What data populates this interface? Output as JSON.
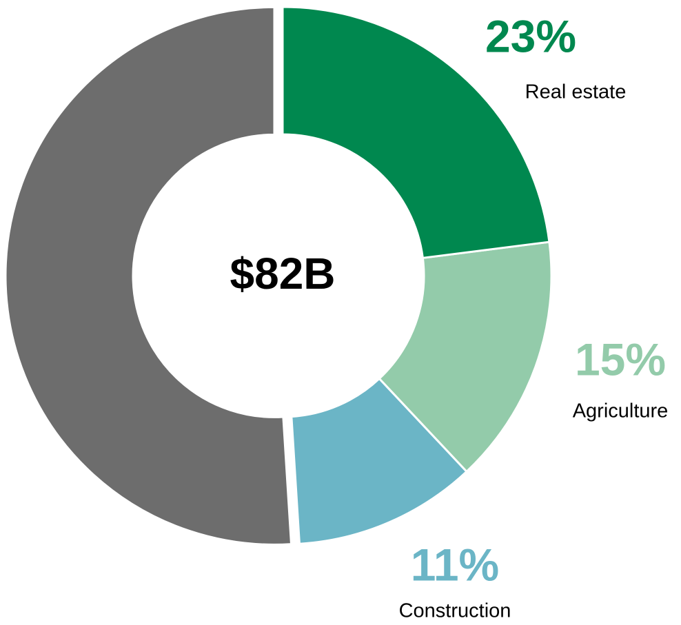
{
  "chart_data": {
    "type": "donut",
    "center_label": "$82B",
    "categories": [
      "Real estate",
      "Agriculture",
      "Construction",
      null
    ],
    "values": [
      23,
      15,
      11,
      51
    ],
    "value_labels": [
      "23%",
      "15%",
      "11%",
      null
    ],
    "colors": [
      "#00884f",
      "#93cbaa",
      "#6bb5c6",
      "#6d6d6d"
    ]
  }
}
